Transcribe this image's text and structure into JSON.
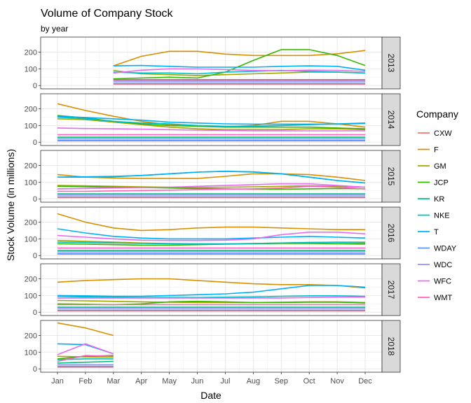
{
  "chart_data": {
    "type": "line",
    "title": "Volume of Company Stock",
    "subtitle": "by year",
    "xlabel": "Date",
    "ylabel": "Stock Volume (in millions)",
    "legend_title": "Company",
    "legend_position": "right",
    "grid": true,
    "facet_by": "year",
    "x_categories": [
      "Jan",
      "Feb",
      "Mar",
      "Apr",
      "May",
      "Jun",
      "Jul",
      "Aug",
      "Sep",
      "Oct",
      "Nov",
      "Dec"
    ],
    "y_ticks": [
      0,
      100,
      200
    ],
    "ylim": [
      -20,
      290
    ],
    "companies": [
      {
        "name": "CXW",
        "color": "#F8766D"
      },
      {
        "name": "F",
        "color": "#D89000"
      },
      {
        "name": "GM",
        "color": "#A3A500"
      },
      {
        "name": "JCP",
        "color": "#39B600"
      },
      {
        "name": "KR",
        "color": "#00BF7D"
      },
      {
        "name": "NKE",
        "color": "#00BFC4"
      },
      {
        "name": "T",
        "color": "#00B0F6"
      },
      {
        "name": "WDAY",
        "color": "#5794FF"
      },
      {
        "name": "WDC",
        "color": "#9590FF"
      },
      {
        "name": "WFC",
        "color": "#E76BF3"
      },
      {
        "name": "WMT",
        "color": "#FF62BC"
      }
    ],
    "panels": [
      {
        "label": "2013",
        "start_month": 3,
        "series": {
          "CXW": [
            null,
            null,
            8,
            8,
            8,
            8,
            8,
            8,
            8,
            8,
            8,
            8
          ],
          "F": [
            null,
            null,
            118,
            175,
            205,
            205,
            188,
            180,
            180,
            180,
            190,
            210
          ],
          "GM": [
            null,
            null,
            90,
            70,
            65,
            60,
            65,
            70,
            75,
            80,
            80,
            75
          ],
          "JCP": [
            null,
            null,
            40,
            45,
            50,
            45,
            80,
            150,
            215,
            215,
            180,
            120
          ],
          "KR": [
            null,
            null,
            35,
            35,
            35,
            35,
            35,
            35,
            35,
            35,
            35,
            35
          ],
          "NKE": [
            null,
            null,
            80,
            75,
            75,
            70,
            80,
            85,
            90,
            85,
            80,
            75
          ],
          "T": [
            null,
            null,
            118,
            120,
            115,
            110,
            110,
            110,
            115,
            118,
            115,
            92
          ],
          "WDAY": [
            null,
            null,
            12,
            12,
            12,
            12,
            12,
            12,
            12,
            12,
            12,
            12
          ],
          "WDC": [
            null,
            null,
            22,
            22,
            22,
            22,
            22,
            22,
            22,
            22,
            22,
            22
          ],
          "WFC": [
            null,
            null,
            75,
            92,
            100,
            100,
            95,
            90,
            88,
            92,
            90,
            85
          ],
          "WMT": [
            null,
            null,
            30,
            30,
            30,
            30,
            30,
            30,
            30,
            30,
            30,
            30
          ]
        }
      },
      {
        "label": "2014",
        "start_month": 1,
        "series": {
          "CXW": [
            8,
            8,
            8,
            8,
            8,
            8,
            8,
            8,
            8,
            8,
            8,
            8
          ],
          "F": [
            230,
            190,
            155,
            125,
            105,
            95,
            92,
            100,
            125,
            125,
            110,
            90
          ],
          "GM": [
            140,
            135,
            120,
            105,
            90,
            80,
            75,
            75,
            75,
            80,
            80,
            75
          ],
          "JCP": [
            160,
            145,
            125,
            110,
            100,
            95,
            90,
            90,
            90,
            90,
            85,
            80
          ],
          "KR": [
            30,
            30,
            30,
            30,
            30,
            30,
            30,
            30,
            30,
            30,
            30,
            30
          ],
          "NKE": [
            150,
            140,
            125,
            115,
            110,
            100,
            95,
            95,
            100,
            105,
            110,
            115
          ],
          "T": [
            155,
            148,
            140,
            132,
            120,
            115,
            110,
            108,
            108,
            108,
            108,
            112
          ],
          "WDAY": [
            12,
            12,
            12,
            12,
            12,
            12,
            12,
            12,
            12,
            12,
            12,
            12
          ],
          "WDC": [
            22,
            22,
            22,
            22,
            22,
            22,
            22,
            22,
            22,
            22,
            22,
            22
          ],
          "WFC": [
            85,
            82,
            80,
            78,
            75,
            72,
            70,
            68,
            68,
            68,
            68,
            68
          ],
          "WMT": [
            45,
            45,
            45,
            45,
            45,
            45,
            45,
            45,
            45,
            45,
            45,
            45
          ]
        }
      },
      {
        "label": "2015",
        "start_month": 1,
        "series": {
          "CXW": [
            8,
            8,
            8,
            8,
            8,
            8,
            8,
            8,
            8,
            8,
            8,
            8
          ],
          "F": [
            145,
            130,
            125,
            122,
            122,
            122,
            135,
            150,
            150,
            145,
            130,
            110
          ],
          "GM": [
            80,
            78,
            75,
            72,
            70,
            68,
            70,
            72,
            75,
            78,
            75,
            70
          ],
          "JCP": [
            75,
            72,
            70,
            68,
            65,
            62,
            60,
            58,
            58,
            60,
            62,
            60
          ],
          "KR": [
            30,
            30,
            30,
            30,
            30,
            30,
            30,
            30,
            30,
            30,
            30,
            30
          ],
          "NKE": [
            130,
            130,
            132,
            140,
            150,
            160,
            165,
            162,
            150,
            130,
            110,
            95
          ],
          "T": [
            130,
            132,
            135,
            140,
            150,
            160,
            165,
            160,
            150,
            130,
            110,
            95
          ],
          "WDAY": [
            12,
            12,
            12,
            12,
            12,
            12,
            12,
            12,
            12,
            12,
            12,
            12
          ],
          "WDC": [
            22,
            22,
            22,
            22,
            22,
            22,
            22,
            22,
            22,
            22,
            22,
            22
          ],
          "WFC": [
            60,
            62,
            65,
            68,
            70,
            75,
            80,
            85,
            90,
            90,
            80,
            70
          ],
          "WMT": [
            45,
            45,
            48,
            50,
            52,
            55,
            58,
            60,
            65,
            75,
            70,
            60
          ]
        }
      },
      {
        "label": "2016",
        "start_month": 1,
        "series": {
          "CXW": [
            8,
            8,
            8,
            8,
            8,
            8,
            8,
            8,
            8,
            8,
            8,
            8
          ],
          "F": [
            250,
            200,
            165,
            150,
            155,
            165,
            170,
            170,
            165,
            160,
            155,
            155
          ],
          "GM": [
            90,
            85,
            80,
            75,
            72,
            70,
            70,
            72,
            75,
            78,
            80,
            80
          ],
          "JCP": [
            70,
            68,
            65,
            62,
            62,
            65,
            68,
            70,
            72,
            72,
            70,
            68
          ],
          "KR": [
            30,
            30,
            30,
            30,
            30,
            30,
            30,
            30,
            30,
            30,
            30,
            30
          ],
          "NKE": [
            80,
            78,
            75,
            72,
            70,
            70,
            70,
            72,
            75,
            78,
            78,
            75
          ],
          "T": [
            160,
            135,
            115,
            105,
            100,
            100,
            100,
            105,
            110,
            115,
            110,
            105
          ],
          "WDAY": [
            12,
            12,
            12,
            12,
            12,
            12,
            12,
            12,
            12,
            12,
            12,
            12
          ],
          "WDC": [
            22,
            22,
            22,
            22,
            22,
            22,
            22,
            22,
            22,
            22,
            22,
            22
          ],
          "WFC": [
            120,
            110,
            100,
            92,
            90,
            90,
            92,
            100,
            125,
            140,
            140,
            130
          ],
          "WMT": [
            45,
            45,
            45,
            45,
            45,
            45,
            45,
            45,
            45,
            45,
            45,
            45
          ]
        }
      },
      {
        "label": "2017",
        "start_month": 1,
        "series": {
          "CXW": [
            8,
            8,
            8,
            8,
            8,
            8,
            8,
            8,
            8,
            8,
            8,
            8
          ],
          "F": [
            180,
            190,
            195,
            200,
            200,
            190,
            180,
            170,
            165,
            165,
            160,
            145
          ],
          "GM": [
            70,
            68,
            65,
            62,
            60,
            58,
            58,
            58,
            60,
            62,
            62,
            58
          ],
          "JCP": [
            50,
            48,
            45,
            50,
            62,
            65,
            62,
            58,
            58,
            60,
            60,
            55
          ],
          "KR": [
            30,
            30,
            30,
            30,
            30,
            30,
            30,
            30,
            30,
            30,
            30,
            30
          ],
          "NKE": [
            95,
            92,
            90,
            88,
            88,
            88,
            90,
            92,
            95,
            98,
            98,
            95
          ],
          "T": [
            100,
            98,
            95,
            95,
            100,
            105,
            110,
            120,
            140,
            160,
            160,
            150
          ],
          "WDAY": [
            12,
            12,
            12,
            12,
            12,
            12,
            12,
            12,
            12,
            12,
            12,
            12
          ],
          "WDC": [
            22,
            22,
            22,
            22,
            22,
            22,
            22,
            22,
            22,
            22,
            22,
            22
          ],
          "WFC": [
            85,
            85,
            85,
            85,
            85,
            85,
            85,
            85,
            85,
            88,
            90,
            90
          ],
          "WMT": [
            45,
            45,
            45,
            45,
            45,
            45,
            45,
            45,
            45,
            45,
            45,
            45
          ]
        }
      },
      {
        "label": "2018",
        "start_month": 1,
        "series": {
          "CXW": [
            10,
            10,
            10,
            null,
            null,
            null,
            null,
            null,
            null,
            null,
            null,
            null
          ],
          "F": [
            275,
            245,
            200,
            null,
            null,
            null,
            null,
            null,
            null,
            null,
            null,
            null
          ],
          "GM": [
            75,
            72,
            70,
            null,
            null,
            null,
            null,
            null,
            null,
            null,
            null,
            null
          ],
          "JCP": [
            60,
            75,
            80,
            null,
            null,
            null,
            null,
            null,
            null,
            null,
            null,
            null
          ],
          "KR": [
            35,
            40,
            45,
            null,
            null,
            null,
            null,
            null,
            null,
            null,
            null,
            null
          ],
          "NKE": [
            55,
            60,
            60,
            null,
            null,
            null,
            null,
            null,
            null,
            null,
            null,
            null
          ],
          "T": [
            150,
            145,
            90,
            null,
            null,
            null,
            null,
            null,
            null,
            null,
            null,
            null
          ],
          "WDAY": [
            15,
            15,
            15,
            null,
            null,
            null,
            null,
            null,
            null,
            null,
            null,
            null
          ],
          "WDC": [
            25,
            25,
            25,
            null,
            null,
            null,
            null,
            null,
            null,
            null,
            null,
            null
          ],
          "WFC": [
            85,
            150,
            90,
            null,
            null,
            null,
            null,
            null,
            null,
            null,
            null,
            null
          ],
          "WMT": [
            45,
            80,
            75,
            null,
            null,
            null,
            null,
            null,
            null,
            null,
            null,
            null
          ]
        }
      }
    ]
  }
}
